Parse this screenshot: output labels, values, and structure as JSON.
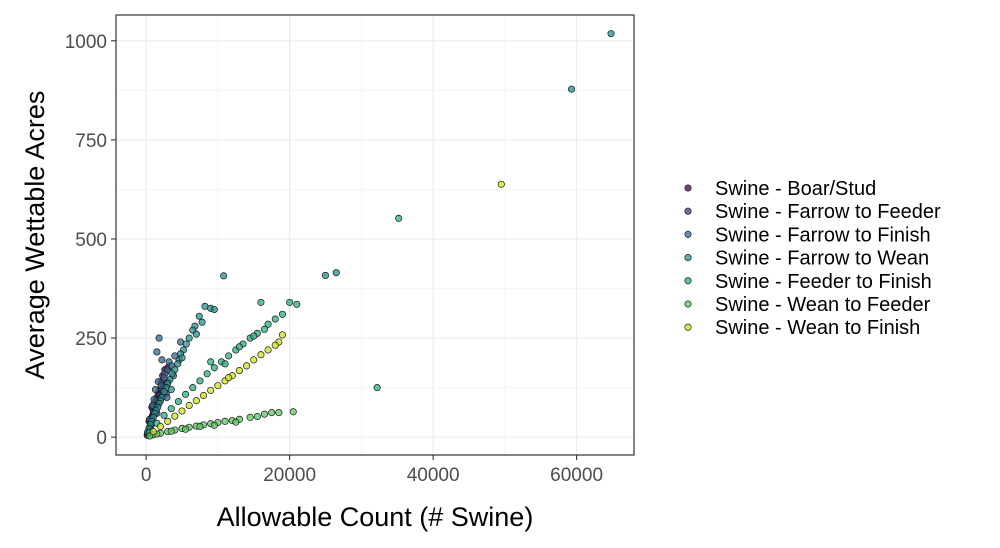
{
  "chart_data": {
    "type": "scatter",
    "title": "",
    "xlabel": "Allowable Count (# Swine)",
    "ylabel": "Average Wettable Acres",
    "xlim": [
      -4200,
      68000
    ],
    "ylim": [
      -45,
      1065
    ],
    "x_ticks": [
      0,
      20000,
      40000,
      60000
    ],
    "x_tick_labels": [
      "0",
      "20000",
      "40000",
      "60000"
    ],
    "y_ticks": [
      0,
      250,
      500,
      750,
      1000
    ],
    "y_tick_labels": [
      "0",
      "250",
      "500",
      "750",
      "1000"
    ],
    "grid": true,
    "legend_position": "right",
    "series": [
      {
        "name": "Swine - Boar/Stud",
        "color": "#440154",
        "points": [
          [
            150,
            5
          ],
          [
            300,
            12
          ],
          [
            450,
            20
          ],
          [
            600,
            30
          ],
          [
            750,
            42
          ],
          [
            900,
            55
          ],
          [
            1050,
            68
          ],
          [
            1200,
            80
          ],
          [
            1350,
            92
          ],
          [
            1500,
            100
          ],
          [
            1700,
            110
          ],
          [
            1900,
            120
          ],
          [
            2100,
            140
          ],
          [
            2300,
            155
          ],
          [
            2600,
            170
          ],
          [
            3000,
            175
          ],
          [
            400,
            40
          ],
          [
            800,
            75
          ],
          [
            1600,
            85
          ],
          [
            2400,
            130
          ]
        ]
      },
      {
        "name": "Swine - Farrow to Feeder",
        "color": "#443A83",
        "points": [
          [
            200,
            10
          ],
          [
            400,
            22
          ],
          [
            600,
            38
          ],
          [
            800,
            50
          ],
          [
            1000,
            65
          ],
          [
            1200,
            75
          ],
          [
            1400,
            88
          ],
          [
            1600,
            95
          ],
          [
            1800,
            105
          ],
          [
            2000,
            100
          ],
          [
            2200,
            120
          ],
          [
            2500,
            130
          ],
          [
            3000,
            140
          ],
          [
            500,
            45
          ],
          [
            900,
            80
          ],
          [
            1500,
            60
          ],
          [
            2800,
            110
          ],
          [
            700,
            30
          ]
        ]
      },
      {
        "name": "Swine - Farrow to Finish",
        "color": "#31688E",
        "points": [
          [
            1500,
            215
          ],
          [
            1800,
            250
          ],
          [
            2200,
            195
          ],
          [
            2600,
            160
          ],
          [
            3200,
            190
          ],
          [
            4800,
            240
          ],
          [
            500,
            45
          ],
          [
            900,
            80
          ],
          [
            1300,
            120
          ],
          [
            1700,
            140
          ],
          [
            2100,
            130
          ],
          [
            2500,
            150
          ],
          [
            3000,
            170
          ],
          [
            3500,
            180
          ],
          [
            4000,
            205
          ],
          [
            2900,
            100
          ],
          [
            3800,
            155
          ],
          [
            1100,
            95
          ]
        ]
      },
      {
        "name": "Swine - Farrow to Wean",
        "color": "#21908C",
        "points": [
          [
            10800,
            407
          ],
          [
            8200,
            330
          ],
          [
            9000,
            325
          ],
          [
            9500,
            322
          ],
          [
            7400,
            305
          ],
          [
            6800,
            280
          ],
          [
            6500,
            270
          ],
          [
            6000,
            250
          ],
          [
            5600,
            235
          ],
          [
            5200,
            220
          ],
          [
            4800,
            210
          ],
          [
            4600,
            195
          ],
          [
            4400,
            185
          ],
          [
            4000,
            170
          ],
          [
            3600,
            160
          ],
          [
            3300,
            145
          ],
          [
            3000,
            135
          ],
          [
            2800,
            125
          ],
          [
            2500,
            115
          ],
          [
            2200,
            100
          ],
          [
            2000,
            92
          ],
          [
            1800,
            85
          ],
          [
            1600,
            75
          ],
          [
            1400,
            68
          ],
          [
            1200,
            60
          ],
          [
            1000,
            50
          ],
          [
            800,
            40
          ],
          [
            600,
            32
          ],
          [
            400,
            22
          ],
          [
            200,
            12
          ],
          [
            3500,
            120
          ],
          [
            5000,
            200
          ],
          [
            7000,
            260
          ],
          [
            7800,
            290
          ],
          [
            25000,
            408
          ],
          [
            26500,
            415
          ],
          [
            59300,
            878
          ],
          [
            64800,
            1018
          ]
        ]
      },
      {
        "name": "Swine - Feeder to Finish",
        "color": "#27AD81",
        "points": [
          [
            16000,
            340
          ],
          [
            20000,
            340
          ],
          [
            21000,
            335
          ],
          [
            19000,
            310
          ],
          [
            18000,
            298
          ],
          [
            17000,
            285
          ],
          [
            16500,
            272
          ],
          [
            15500,
            262
          ],
          [
            14500,
            250
          ],
          [
            13500,
            235
          ],
          [
            12500,
            220
          ],
          [
            11500,
            205
          ],
          [
            10500,
            190
          ],
          [
            9500,
            175
          ],
          [
            9000,
            190
          ],
          [
            8500,
            160
          ],
          [
            7500,
            142
          ],
          [
            6500,
            125
          ],
          [
            5500,
            108
          ],
          [
            4500,
            90
          ],
          [
            3500,
            72
          ],
          [
            2500,
            55
          ],
          [
            1500,
            35
          ],
          [
            500,
            12
          ],
          [
            11000,
            185
          ],
          [
            13000,
            228
          ],
          [
            15000,
            255
          ],
          [
            35200,
            552
          ],
          [
            32200,
            125
          ]
        ]
      },
      {
        "name": "Swine - Wean to Feeder",
        "color": "#5DC863",
        "points": [
          [
            20500,
            64
          ],
          [
            18500,
            62
          ],
          [
            17500,
            62
          ],
          [
            16500,
            58
          ],
          [
            15500,
            52
          ],
          [
            14500,
            50
          ],
          [
            13000,
            45
          ],
          [
            12000,
            42
          ],
          [
            11000,
            40
          ],
          [
            10000,
            37
          ],
          [
            9000,
            34
          ],
          [
            8000,
            31
          ],
          [
            7000,
            28
          ],
          [
            6000,
            25
          ],
          [
            5000,
            22
          ],
          [
            4000,
            18
          ],
          [
            3000,
            14
          ],
          [
            2000,
            10
          ],
          [
            1000,
            6
          ],
          [
            500,
            3
          ],
          [
            12500,
            38
          ],
          [
            9500,
            30
          ],
          [
            7500,
            27
          ],
          [
            5500,
            20
          ],
          [
            3500,
            15
          ],
          [
            1500,
            8
          ]
        ]
      },
      {
        "name": "Swine - Wean to Finish",
        "color": "#D1E21A",
        "points": [
          [
            19000,
            258
          ],
          [
            18500,
            240
          ],
          [
            17000,
            220
          ],
          [
            16000,
            208
          ],
          [
            15000,
            195
          ],
          [
            14000,
            180
          ],
          [
            13000,
            168
          ],
          [
            12000,
            155
          ],
          [
            11000,
            142
          ],
          [
            10000,
            130
          ],
          [
            9000,
            118
          ],
          [
            8000,
            105
          ],
          [
            7000,
            92
          ],
          [
            6000,
            80
          ],
          [
            5000,
            66
          ],
          [
            4000,
            53
          ],
          [
            3000,
            40
          ],
          [
            2000,
            27
          ],
          [
            1000,
            14
          ],
          [
            49500,
            638
          ],
          [
            18000,
            232
          ],
          [
            11500,
            150
          ]
        ]
      }
    ]
  }
}
